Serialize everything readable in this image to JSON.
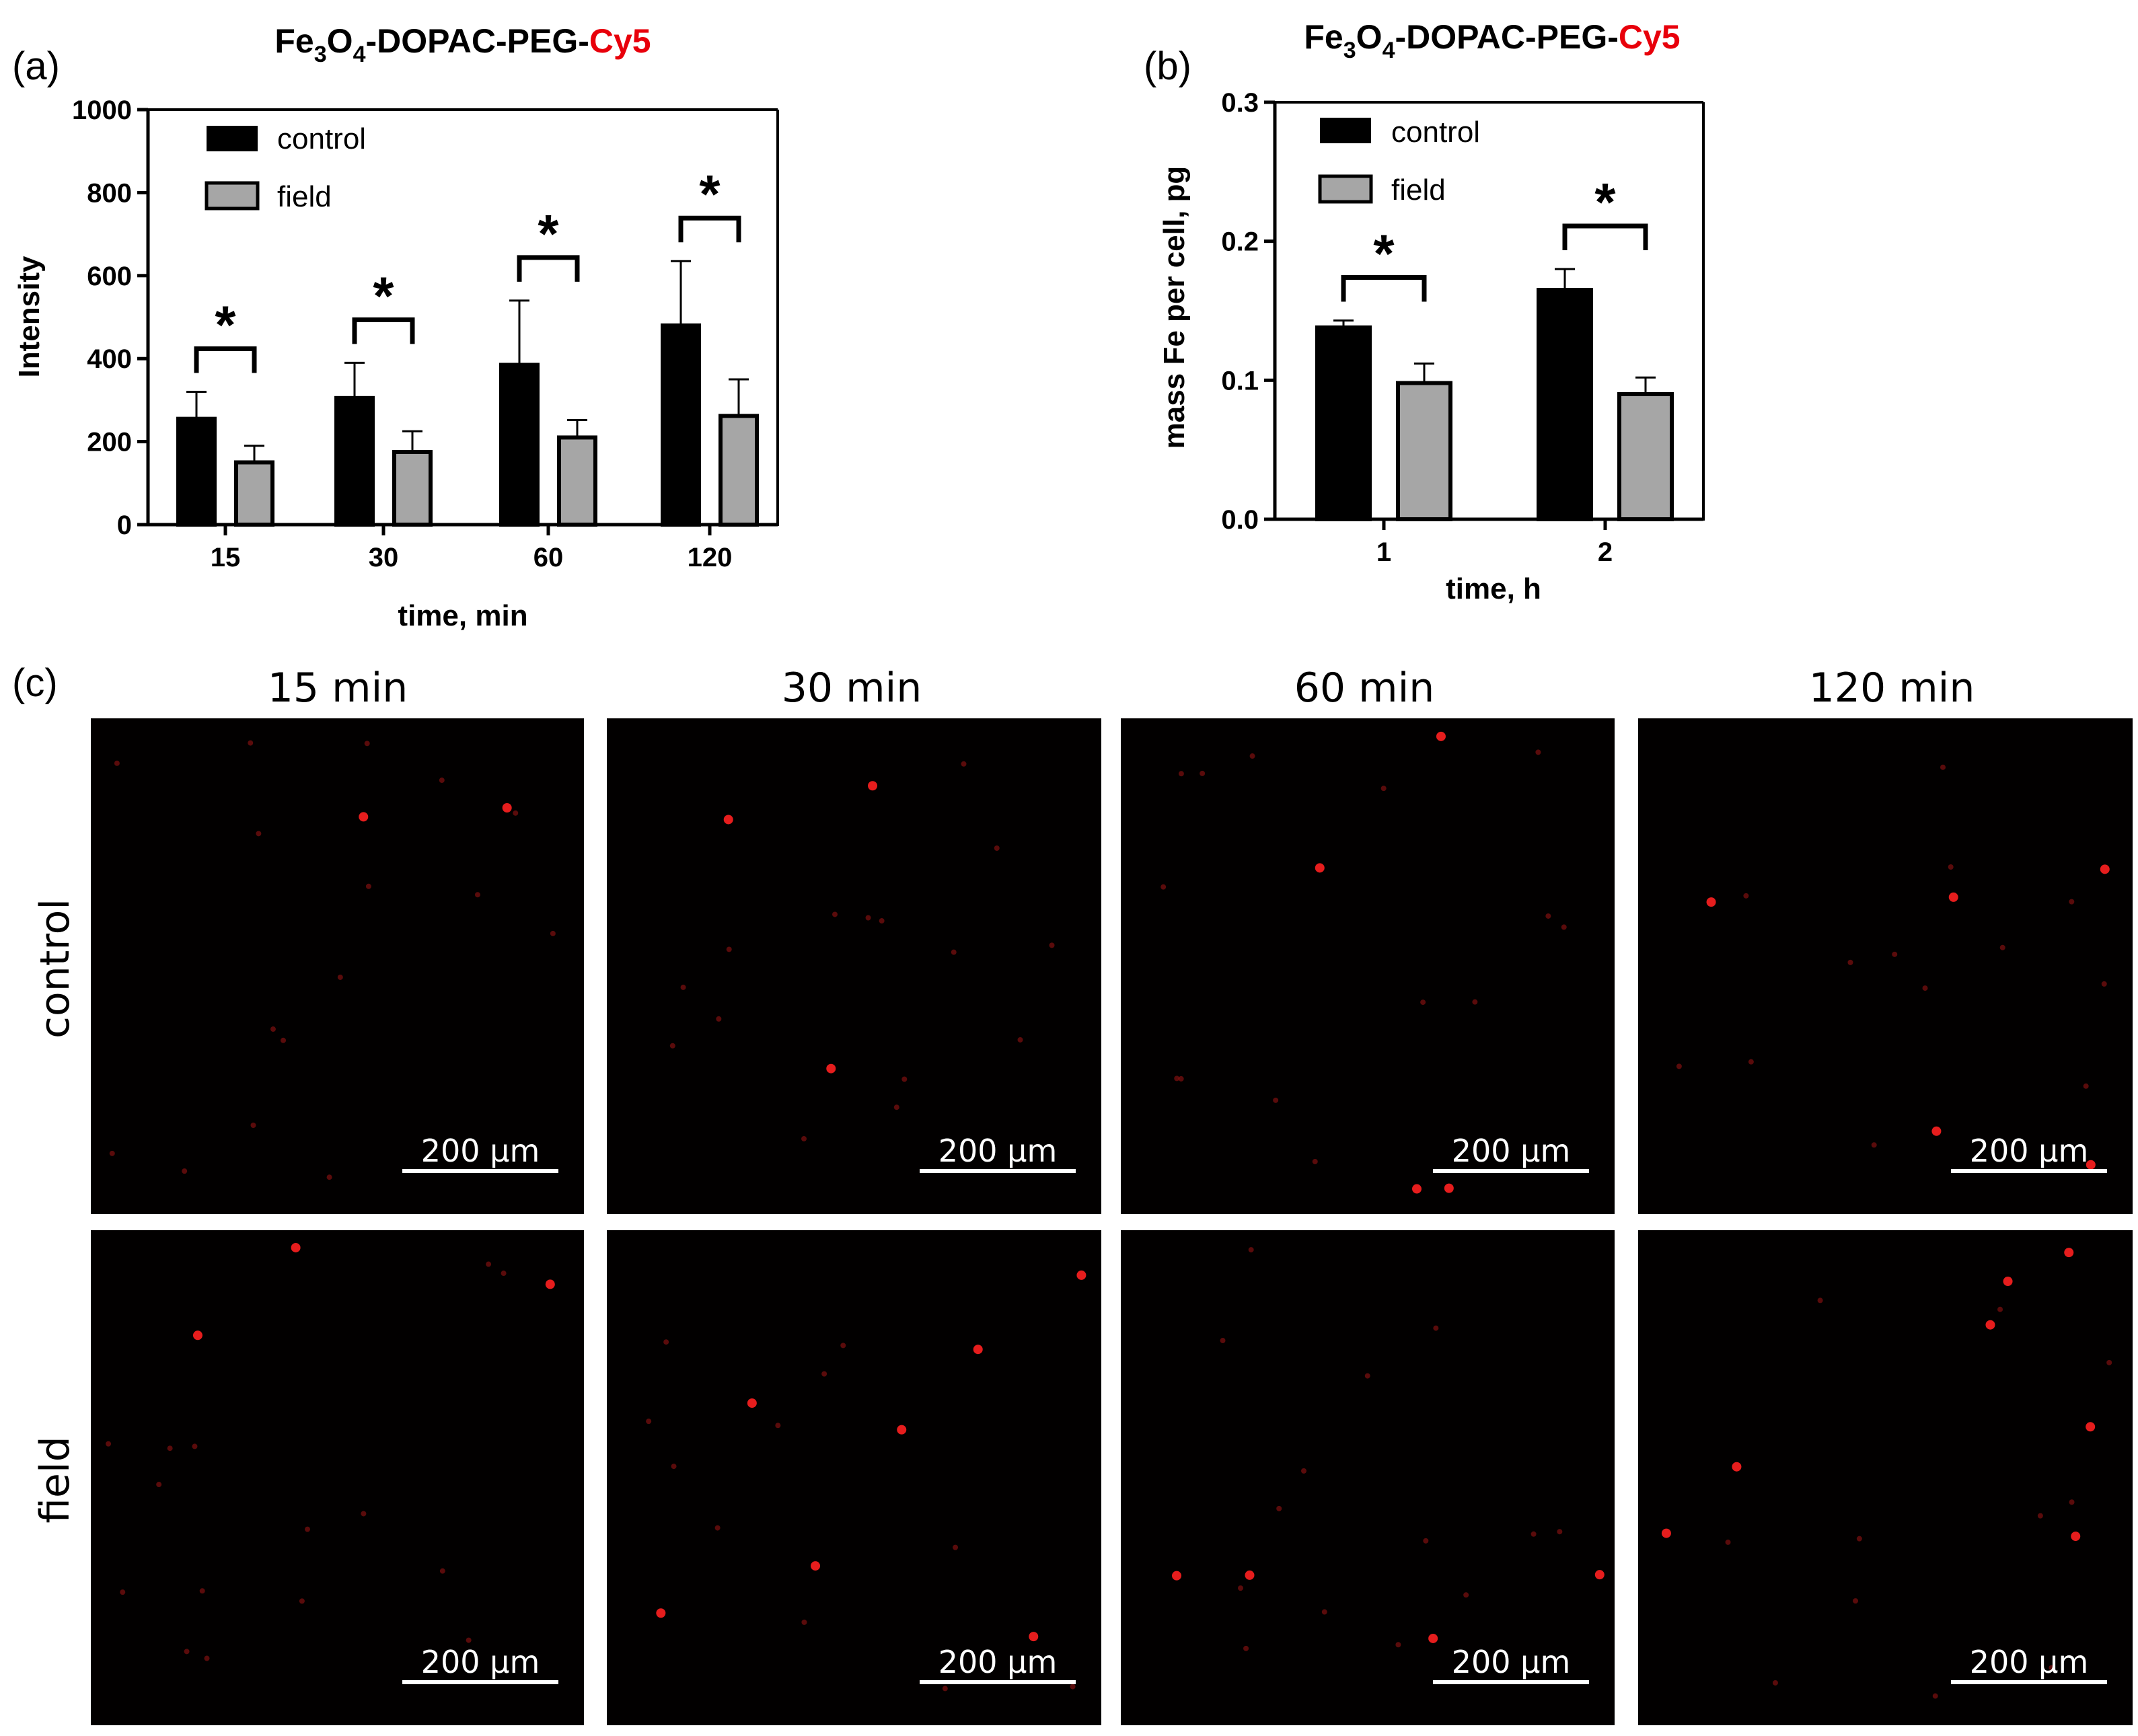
{
  "colors": {
    "control": "#000000",
    "field": "#a6a6a6",
    "cy5": "#e8000b",
    "micrograph_bg": "#020000",
    "cell_spot": "#ff2020"
  },
  "chart_data": [
    {
      "panel": "(a)",
      "type": "bar",
      "title_parts": [
        "Fe",
        "3",
        "O",
        "4",
        "-DOPAC-PEG-",
        "Cy5"
      ],
      "xlabel": "time, min",
      "ylabel": "Intensity",
      "categories": [
        "15",
        "30",
        "60",
        "120"
      ],
      "ylim": [
        0,
        1000
      ],
      "yticks": [
        "0",
        "200",
        "400",
        "600",
        "800",
        "1000"
      ],
      "ytick_values": [
        0,
        200,
        400,
        600,
        800,
        1000
      ],
      "legend": "top-left",
      "series": [
        {
          "name": "control",
          "values": [
            255,
            305,
            385,
            480
          ],
          "errors": [
            65,
            85,
            155,
            155
          ]
        },
        {
          "name": "field",
          "values": [
            150,
            175,
            210,
            262
          ],
          "errors": [
            40,
            50,
            42,
            88
          ]
        }
      ],
      "significance": [
        "*",
        "*",
        "*",
        "*"
      ]
    },
    {
      "panel": "(b)",
      "type": "bar",
      "title_parts": [
        "Fe",
        "3",
        "O",
        "4",
        "-DOPAC-PEG-",
        "Cy5"
      ],
      "xlabel": "time, h",
      "ylabel": "mass Fe per cell, pg",
      "categories": [
        "1",
        "2"
      ],
      "ylim": [
        0,
        0.3
      ],
      "yticks": [
        "0.0",
        "0.1",
        "0.2",
        "0.3"
      ],
      "ytick_values": [
        0,
        0.1,
        0.2,
        0.3
      ],
      "legend": "top-left",
      "series": [
        {
          "name": "control",
          "values": [
            0.138,
            0.165
          ],
          "errors": [
            0.005,
            0.015
          ]
        },
        {
          "name": "field",
          "values": [
            0.098,
            0.09
          ],
          "errors": [
            0.014,
            0.012
          ]
        }
      ],
      "significance": [
        "*",
        "*"
      ]
    }
  ],
  "micrographs": {
    "panel": "(c)",
    "columns": [
      "15 min",
      "30 min",
      "60 min",
      "120 min"
    ],
    "rows": [
      "control",
      "field"
    ],
    "scalebar_label": "200 µm"
  }
}
